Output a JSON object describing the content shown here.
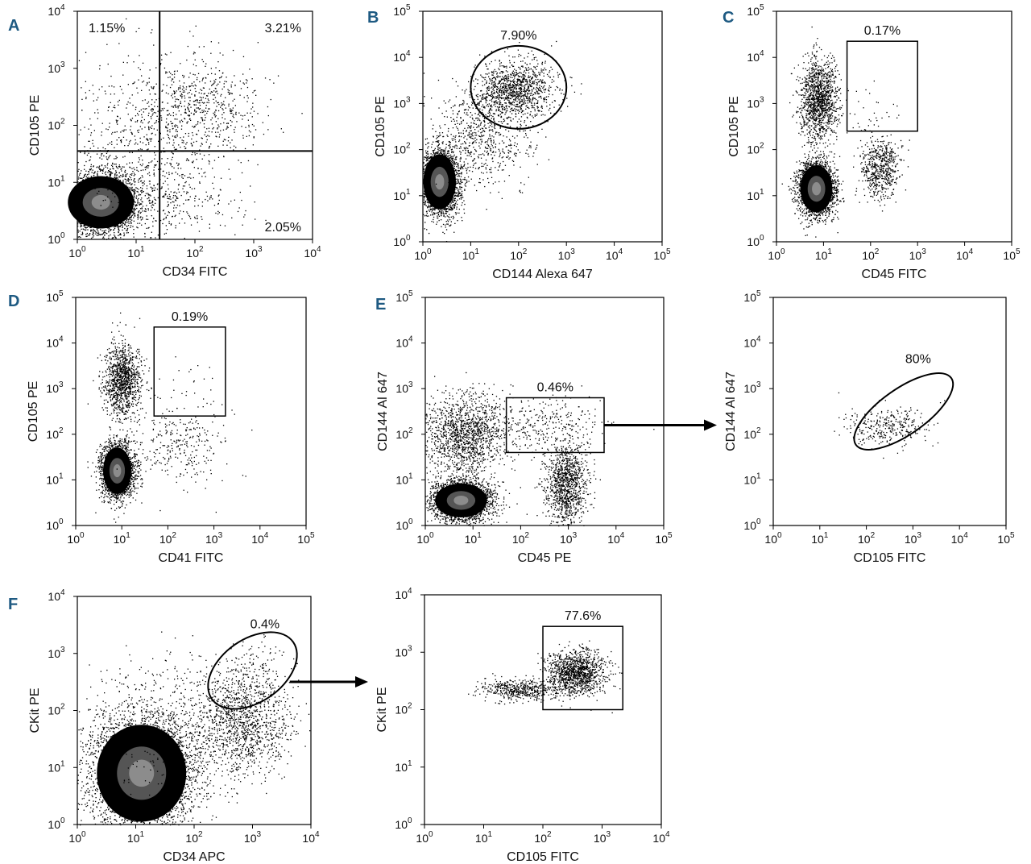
{
  "chart_data": [
    {
      "type": "scatter",
      "panel_label": "A",
      "xlabel": "CD34 FITC",
      "ylabel": "CD105 PE",
      "x_decades": [
        0,
        4
      ],
      "y_decades": [
        0,
        4
      ],
      "quadrant_lines": {
        "x": 1.4,
        "y": 1.55
      },
      "annotations": [
        {
          "text": "1.15%",
          "position": "top-left"
        },
        {
          "text": "3.21%",
          "position": "top-right"
        },
        {
          "text": "2.05%",
          "position": "bottom-right"
        }
      ],
      "populations": [
        {
          "cx": 0.4,
          "cy": 0.65,
          "sx": 0.33,
          "sy": 0.27,
          "n": 3200,
          "dense": true
        },
        {
          "cx": 2.0,
          "cy": 2.3,
          "sx": 0.55,
          "sy": 0.45,
          "n": 700
        },
        {
          "cx": 0.8,
          "cy": 1.6,
          "sx": 0.6,
          "sy": 0.8,
          "n": 500
        },
        {
          "cx": 1.6,
          "cy": 0.8,
          "sx": 0.6,
          "sy": 0.4,
          "n": 300
        }
      ]
    },
    {
      "type": "scatter",
      "panel_label": "B",
      "xlabel": "CD144 Alexa 647",
      "ylabel": "CD105 PE",
      "x_decades": [
        0,
        5
      ],
      "y_decades": [
        0,
        5
      ],
      "gates": [
        {
          "shape": "ellipse",
          "cx": 2.0,
          "cy": 3.35,
          "rx": 1.0,
          "ry": 0.9,
          "label": "7.90%"
        }
      ],
      "populations": [
        {
          "cx": 0.35,
          "cy": 1.3,
          "sx": 0.2,
          "sy": 0.35,
          "n": 2600,
          "dense": true
        },
        {
          "cx": 1.95,
          "cy": 3.3,
          "sx": 0.4,
          "sy": 0.3,
          "n": 1100
        },
        {
          "cx": 1.2,
          "cy": 2.3,
          "sx": 0.5,
          "sy": 0.6,
          "n": 700
        }
      ]
    },
    {
      "type": "scatter",
      "panel_label": "C",
      "xlabel": "CD45 FITC",
      "ylabel": "CD105 PE",
      "x_decades": [
        0,
        5
      ],
      "y_decades": [
        0,
        5
      ],
      "gates": [
        {
          "shape": "rect",
          "x0": 1.5,
          "x1": 3.0,
          "y0": 2.4,
          "y1": 4.35,
          "label": "0.17%"
        }
      ],
      "populations": [
        {
          "cx": 0.85,
          "cy": 1.15,
          "sx": 0.2,
          "sy": 0.3,
          "n": 2400,
          "dense": true
        },
        {
          "cx": 0.9,
          "cy": 3.1,
          "sx": 0.2,
          "sy": 0.45,
          "n": 1300
        },
        {
          "cx": 2.2,
          "cy": 1.6,
          "sx": 0.22,
          "sy": 0.35,
          "n": 600
        },
        {
          "cx": 2.0,
          "cy": 2.9,
          "sx": 0.3,
          "sy": 0.35,
          "n": 25
        }
      ]
    },
    {
      "type": "scatter",
      "panel_label": "D",
      "xlabel": "CD41 FITC",
      "ylabel": "CD105 PE",
      "x_decades": [
        0,
        5
      ],
      "y_decades": [
        0,
        5
      ],
      "gates": [
        {
          "shape": "rect",
          "x0": 1.7,
          "x1": 3.25,
          "y0": 2.4,
          "y1": 4.35,
          "label": "0.19%"
        }
      ],
      "populations": [
        {
          "cx": 0.9,
          "cy": 1.2,
          "sx": 0.18,
          "sy": 0.3,
          "n": 2400,
          "dense": true
        },
        {
          "cx": 1.0,
          "cy": 3.2,
          "sx": 0.2,
          "sy": 0.4,
          "n": 1100
        },
        {
          "cx": 2.2,
          "cy": 1.8,
          "sx": 0.6,
          "sy": 0.5,
          "n": 300
        },
        {
          "cx": 2.4,
          "cy": 3.0,
          "sx": 0.4,
          "sy": 0.4,
          "n": 25
        }
      ]
    },
    {
      "type": "scatter",
      "panel_label": "E",
      "xlabel": "CD45 PE",
      "ylabel": "CD144 Al 647",
      "x_decades": [
        0,
        5
      ],
      "y_decades": [
        0,
        5
      ],
      "gates": [
        {
          "shape": "rect",
          "x0": 1.7,
          "x1": 3.75,
          "y0": 1.6,
          "y1": 2.8,
          "label": "0.46%"
        }
      ],
      "populations": [
        {
          "cx": 0.75,
          "cy": 0.55,
          "sx": 0.32,
          "sy": 0.22,
          "n": 2600,
          "dense": true
        },
        {
          "cx": 0.8,
          "cy": 2.0,
          "sx": 0.45,
          "sy": 0.45,
          "n": 1400
        },
        {
          "cx": 2.95,
          "cy": 0.9,
          "sx": 0.22,
          "sy": 0.45,
          "n": 1100
        },
        {
          "cx": 2.5,
          "cy": 2.2,
          "sx": 0.6,
          "sy": 0.3,
          "n": 300
        }
      ]
    },
    {
      "type": "scatter",
      "panel_label": "",
      "xlabel": "CD105 FITC",
      "ylabel": "CD144 Al 647",
      "x_decades": [
        0,
        5
      ],
      "y_decades": [
        0,
        5
      ],
      "gates": [
        {
          "shape": "ellipse",
          "cx": 2.8,
          "cy": 2.5,
          "rx": 1.25,
          "ry": 0.5,
          "rotate": -35,
          "label": "80%"
        }
      ],
      "populations": [
        {
          "cx": 2.4,
          "cy": 2.2,
          "sx": 0.45,
          "sy": 0.2,
          "n": 320
        }
      ]
    },
    {
      "type": "scatter",
      "panel_label": "F",
      "xlabel": "CD34 APC",
      "ylabel": "CKit PE",
      "x_decades": [
        0,
        4
      ],
      "y_decades": [
        0,
        4
      ],
      "gates": [
        {
          "shape": "ellipse",
          "cx": 3.0,
          "cy": 2.7,
          "rx": 0.85,
          "ry": 0.55,
          "rotate": -35,
          "label": "0.4%"
        }
      ],
      "populations": [
        {
          "cx": 1.1,
          "cy": 0.9,
          "sx": 0.45,
          "sy": 0.5,
          "n": 4200,
          "dense": true
        },
        {
          "cx": 2.8,
          "cy": 1.8,
          "sx": 0.4,
          "sy": 0.45,
          "n": 1200
        },
        {
          "cx": 1.5,
          "cy": 1.8,
          "sx": 0.8,
          "sy": 0.6,
          "n": 500
        },
        {
          "cx": 3.0,
          "cy": 2.7,
          "sx": 0.3,
          "sy": 0.25,
          "n": 120
        }
      ]
    },
    {
      "type": "scatter",
      "panel_label": "",
      "xlabel": "CD105 FITC",
      "ylabel": "CKit PE",
      "x_decades": [
        0,
        4
      ],
      "y_decades": [
        0,
        4
      ],
      "gates": [
        {
          "shape": "rect",
          "x0": 2.0,
          "x1": 3.35,
          "y0": 2.0,
          "y1": 3.45,
          "label": "77.6%"
        }
      ],
      "populations": [
        {
          "cx": 2.55,
          "cy": 2.65,
          "sx": 0.25,
          "sy": 0.2,
          "n": 1200
        },
        {
          "cx": 1.6,
          "cy": 2.35,
          "sx": 0.35,
          "sy": 0.1,
          "n": 500
        }
      ]
    }
  ],
  "arrows": [
    {
      "from_panel": 4,
      "to_panel": 5
    },
    {
      "from_panel": 6,
      "to_panel": 7
    }
  ]
}
